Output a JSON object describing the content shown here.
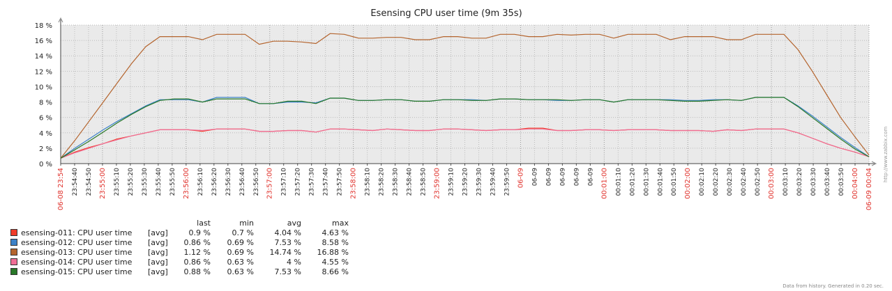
{
  "chart_data": {
    "type": "line",
    "title": "Esensing CPU user time (9m 35s)",
    "ylim": [
      0,
      18
    ],
    "yticks": [
      "0 %",
      "2 %",
      "4 %",
      "6 %",
      "8 %",
      "10 %",
      "12 %",
      "14 %",
      "16 %",
      "18 %"
    ],
    "grid": true,
    "xticks": [
      {
        "label": "06-08 23:54",
        "major": true
      },
      {
        "label": "23:54:40",
        "major": false
      },
      {
        "label": "23:54:50",
        "major": false
      },
      {
        "label": "23:55:00",
        "major": true
      },
      {
        "label": "23:55:10",
        "major": false
      },
      {
        "label": "23:55:20",
        "major": false
      },
      {
        "label": "23:55:30",
        "major": false
      },
      {
        "label": "23:55:40",
        "major": false
      },
      {
        "label": "23:55:50",
        "major": false
      },
      {
        "label": "23:56:00",
        "major": true
      },
      {
        "label": "23:56:10",
        "major": false
      },
      {
        "label": "23:56:20",
        "major": false
      },
      {
        "label": "23:56:30",
        "major": false
      },
      {
        "label": "23:56:40",
        "major": false
      },
      {
        "label": "23:56:50",
        "major": false
      },
      {
        "label": "23:57:00",
        "major": true
      },
      {
        "label": "23:57:10",
        "major": false
      },
      {
        "label": "23:57:20",
        "major": false
      },
      {
        "label": "23:57:30",
        "major": false
      },
      {
        "label": "23:57:40",
        "major": false
      },
      {
        "label": "23:57:50",
        "major": false
      },
      {
        "label": "23:58:00",
        "major": true
      },
      {
        "label": "23:58:10",
        "major": false
      },
      {
        "label": "23:58:20",
        "major": false
      },
      {
        "label": "23:58:30",
        "major": false
      },
      {
        "label": "23:58:40",
        "major": false
      },
      {
        "label": "23:58:50",
        "major": false
      },
      {
        "label": "23:59:00",
        "major": true
      },
      {
        "label": "23:59:10",
        "major": false
      },
      {
        "label": "23:59:20",
        "major": false
      },
      {
        "label": "23:59:30",
        "major": false
      },
      {
        "label": "23:59:40",
        "major": false
      },
      {
        "label": "23:59:50",
        "major": false
      },
      {
        "label": "06-09",
        "major": true
      },
      {
        "label": "06-09",
        "major": false
      },
      {
        "label": "06-09",
        "major": false
      },
      {
        "label": "06-09",
        "major": false
      },
      {
        "label": "06-09",
        "major": false
      },
      {
        "label": "06-09",
        "major": false
      },
      {
        "label": "00:01:00",
        "major": true
      },
      {
        "label": "00:01:10",
        "major": false
      },
      {
        "label": "00:01:20",
        "major": false
      },
      {
        "label": "00:01:30",
        "major": false
      },
      {
        "label": "00:01:40",
        "major": false
      },
      {
        "label": "00:01:50",
        "major": false
      },
      {
        "label": "00:02:00",
        "major": true
      },
      {
        "label": "00:02:10",
        "major": false
      },
      {
        "label": "00:02:20",
        "major": false
      },
      {
        "label": "00:02:30",
        "major": false
      },
      {
        "label": "00:02:40",
        "major": false
      },
      {
        "label": "00:02:50",
        "major": false
      },
      {
        "label": "00:03:00",
        "major": true
      },
      {
        "label": "00:03:10",
        "major": false
      },
      {
        "label": "00:03:20",
        "major": false
      },
      {
        "label": "00:03:30",
        "major": false
      },
      {
        "label": "00:03:40",
        "major": false
      },
      {
        "label": "00:03:50",
        "major": false
      },
      {
        "label": "00:04:00",
        "major": true
      },
      {
        "label": "06-09 00:04",
        "major": true
      }
    ],
    "series": [
      {
        "name": "esensing-011: CPU user time",
        "color": "#f03c28",
        "values": [
          0.7,
          1.5,
          2.1,
          2.6,
          3.2,
          3.6,
          4.0,
          4.4,
          4.4,
          4.4,
          4.2,
          4.5,
          4.5,
          4.5,
          4.2,
          4.2,
          4.3,
          4.3,
          4.1,
          4.5,
          4.5,
          4.4,
          4.3,
          4.5,
          4.4,
          4.3,
          4.3,
          4.5,
          4.5,
          4.4,
          4.3,
          4.4,
          4.4,
          4.6,
          4.6,
          4.3,
          4.3,
          4.4,
          4.4,
          4.3,
          4.4,
          4.4,
          4.4,
          4.3,
          4.3,
          4.3,
          4.2,
          4.4,
          4.3,
          4.5,
          4.5,
          4.5,
          4.0,
          3.3,
          2.6,
          2.0,
          1.5,
          0.9
        ]
      },
      {
        "name": "esensing-012: CPU user time",
        "color": "#3c82c8",
        "values": [
          0.7,
          2.0,
          3.2,
          4.4,
          5.5,
          6.5,
          7.5,
          8.3,
          8.3,
          8.3,
          8.0,
          8.6,
          8.6,
          8.6,
          7.8,
          7.8,
          8.0,
          8.0,
          7.9,
          8.5,
          8.5,
          8.2,
          8.2,
          8.3,
          8.3,
          8.1,
          8.1,
          8.3,
          8.3,
          8.3,
          8.2,
          8.4,
          8.4,
          8.3,
          8.3,
          8.2,
          8.2,
          8.3,
          8.3,
          8.0,
          8.3,
          8.3,
          8.3,
          8.3,
          8.2,
          8.2,
          8.3,
          8.3,
          8.2,
          8.6,
          8.6,
          8.6,
          7.5,
          6.2,
          4.8,
          3.4,
          2.1,
          0.9
        ]
      },
      {
        "name": "esensing-013: CPU user time",
        "color": "#b4642d",
        "values": [
          0.7,
          3.0,
          5.5,
          8.0,
          10.5,
          13.0,
          15.2,
          16.5,
          16.5,
          16.5,
          16.1,
          16.8,
          16.8,
          16.8,
          15.5,
          15.9,
          15.9,
          15.8,
          15.6,
          16.9,
          16.8,
          16.3,
          16.3,
          16.4,
          16.4,
          16.1,
          16.1,
          16.5,
          16.5,
          16.3,
          16.3,
          16.8,
          16.8,
          16.5,
          16.5,
          16.8,
          16.7,
          16.8,
          16.8,
          16.3,
          16.8,
          16.8,
          16.8,
          16.1,
          16.5,
          16.5,
          16.5,
          16.1,
          16.1,
          16.8,
          16.8,
          16.8,
          14.8,
          12.0,
          9.0,
          6.0,
          3.5,
          1.1
        ]
      },
      {
        "name": "esensing-014: CPU user time",
        "color": "#f06e96",
        "values": [
          0.7,
          1.4,
          2.0,
          2.6,
          3.1,
          3.6,
          4.0,
          4.4,
          4.4,
          4.4,
          4.3,
          4.5,
          4.5,
          4.5,
          4.2,
          4.2,
          4.3,
          4.3,
          4.1,
          4.5,
          4.5,
          4.4,
          4.3,
          4.5,
          4.4,
          4.3,
          4.3,
          4.5,
          4.5,
          4.4,
          4.3,
          4.4,
          4.4,
          4.5,
          4.5,
          4.3,
          4.3,
          4.4,
          4.4,
          4.3,
          4.4,
          4.4,
          4.4,
          4.3,
          4.3,
          4.3,
          4.2,
          4.4,
          4.3,
          4.5,
          4.5,
          4.5,
          4.0,
          3.3,
          2.6,
          2.0,
          1.5,
          0.9
        ]
      },
      {
        "name": "esensing-015: CPU user time",
        "color": "#287828",
        "values": [
          0.7,
          1.8,
          2.9,
          4.1,
          5.3,
          6.4,
          7.4,
          8.2,
          8.4,
          8.4,
          8.0,
          8.4,
          8.4,
          8.4,
          7.8,
          7.8,
          8.1,
          8.1,
          7.8,
          8.5,
          8.5,
          8.2,
          8.2,
          8.3,
          8.3,
          8.1,
          8.1,
          8.3,
          8.3,
          8.2,
          8.2,
          8.4,
          8.4,
          8.3,
          8.3,
          8.3,
          8.2,
          8.3,
          8.3,
          8.0,
          8.3,
          8.3,
          8.3,
          8.2,
          8.1,
          8.1,
          8.2,
          8.3,
          8.2,
          8.6,
          8.6,
          8.6,
          7.4,
          6.0,
          4.6,
          3.2,
          1.9,
          0.9
        ]
      }
    ]
  },
  "legend": {
    "header": {
      "last": "last",
      "min": "min",
      "avg": "avg",
      "max": "max"
    },
    "rows": [
      {
        "name": "esensing-011: CPU user time",
        "agg": "[avg]",
        "last": "0.9 %",
        "min": "0.7 %",
        "avg": "4.04 %",
        "max": "4.63 %",
        "color": "#f03c28"
      },
      {
        "name": "esensing-012: CPU user time",
        "agg": "[avg]",
        "last": "0.86 %",
        "min": "0.69 %",
        "avg": "7.53 %",
        "max": "8.58 %",
        "color": "#3c82c8"
      },
      {
        "name": "esensing-013: CPU user time",
        "agg": "[avg]",
        "last": "1.12 %",
        "min": "0.69 %",
        "avg": "14.74 %",
        "max": "16.88 %",
        "color": "#b4642d"
      },
      {
        "name": "esensing-014: CPU user time",
        "agg": "[avg]",
        "last": "0.86 %",
        "min": "0.63 %",
        "avg": "4 %",
        "max": "4.55 %",
        "color": "#f06e96"
      },
      {
        "name": "esensing-015: CPU user time",
        "agg": "[avg]",
        "last": "0.88 %",
        "min": "0.63 %",
        "avg": "7.53 %",
        "max": "8.66 %",
        "color": "#287828"
      }
    ]
  },
  "footer": "Data from history. Generated in 0.20 sec.",
  "watermark": "http://www.zabbix.com"
}
